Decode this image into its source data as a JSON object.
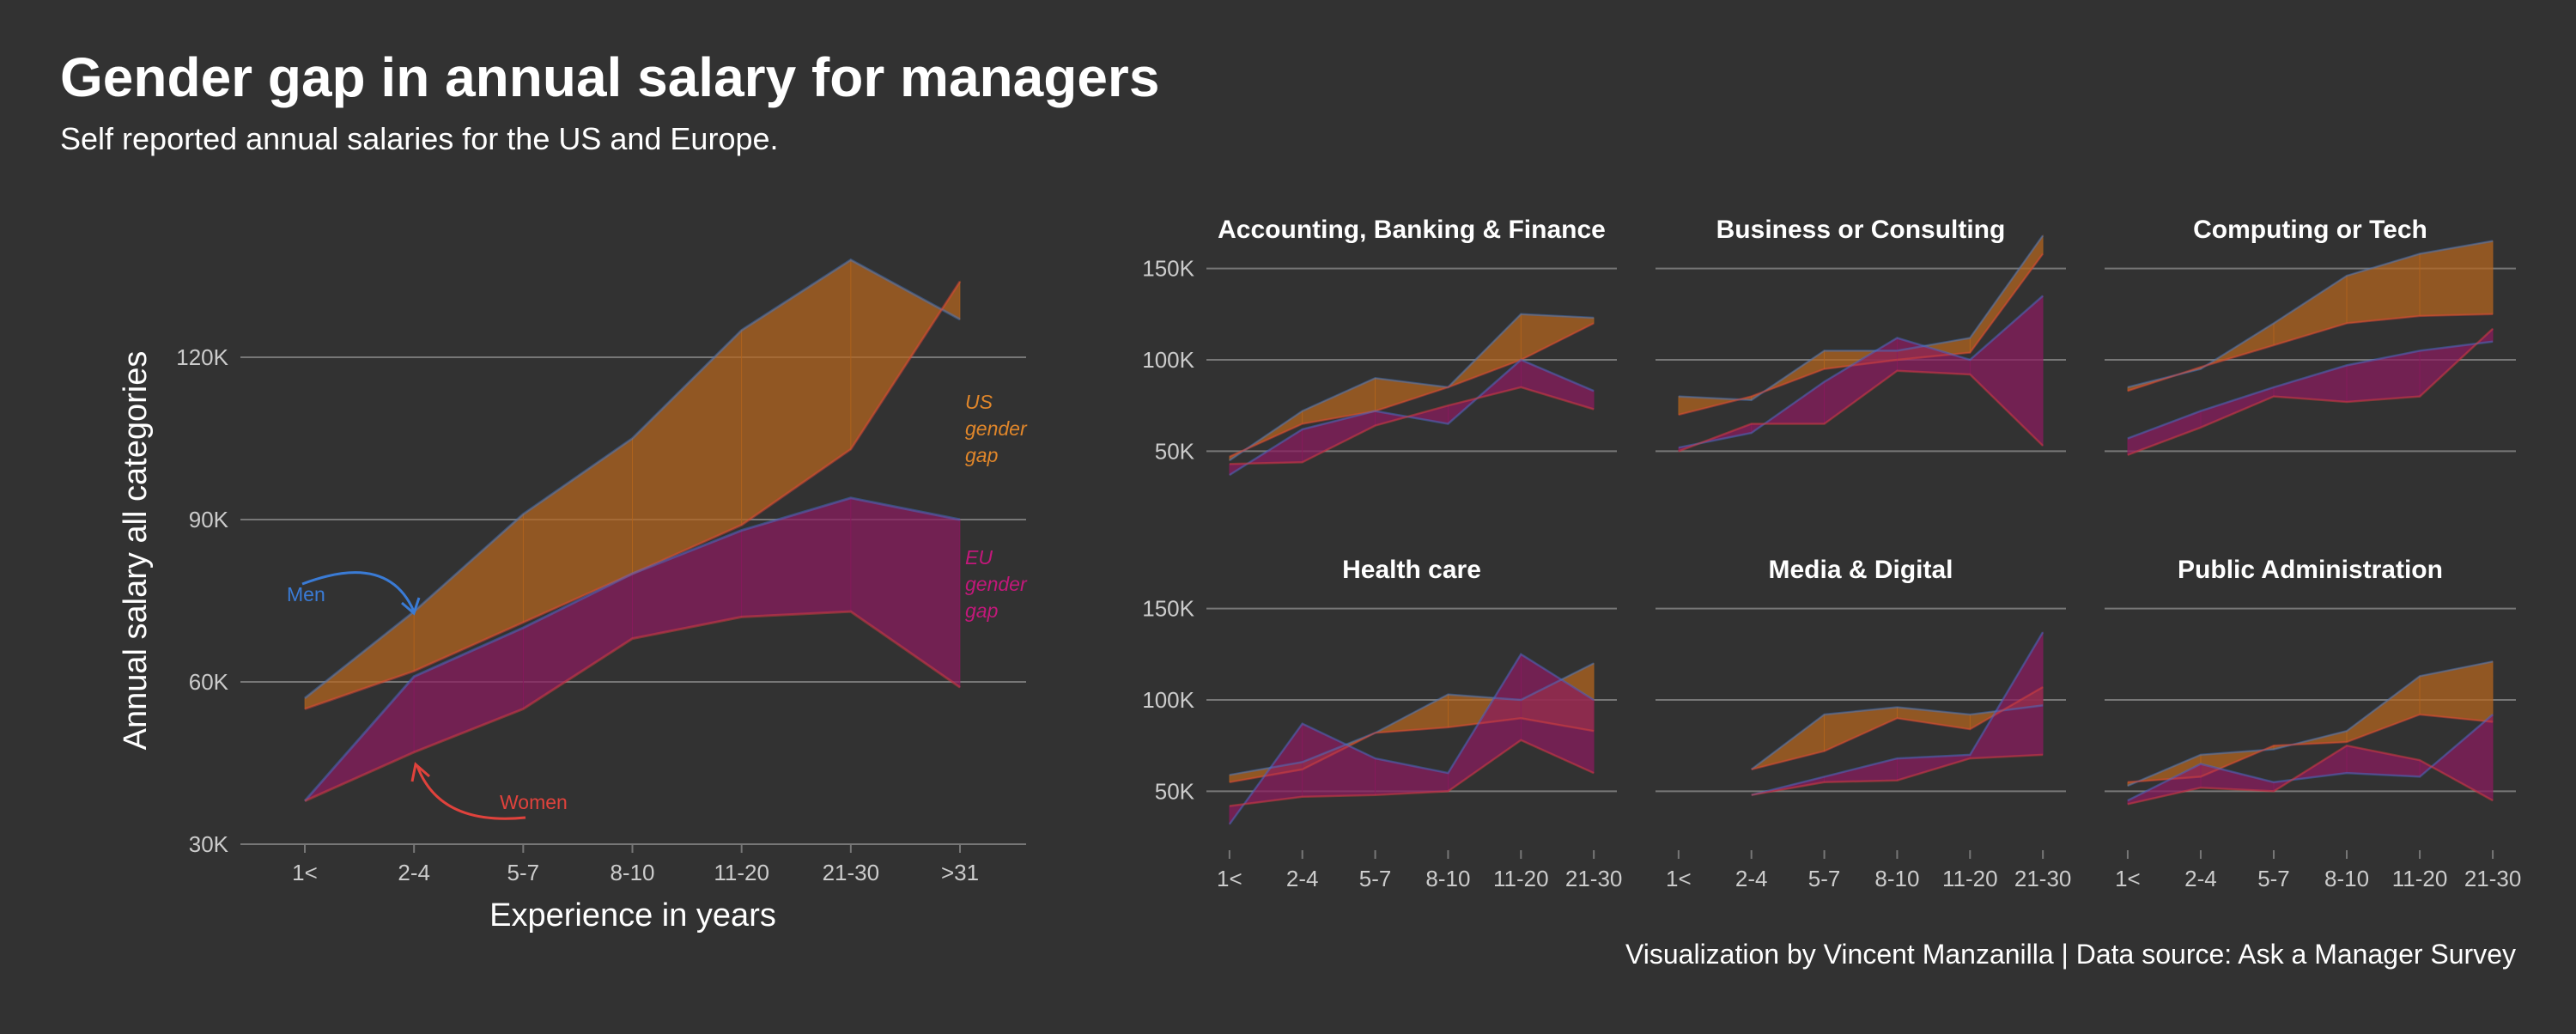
{
  "title": "Gender gap in annual salary for managers",
  "subtitle": "Self reported annual salaries for the US and Europe.",
  "caption": "Visualization by Vincent Manzanilla  |  Data source: Ask a Manager Survey",
  "colors": {
    "background": "#323232",
    "us_fill": "#b5651d",
    "eu_fill": "#8b1a5e",
    "men": "#3a7bd5",
    "women": "#e0423c",
    "us_label": "#e0862a",
    "eu_label": "#c2187a",
    "text": "#ffffff",
    "grid": "#777777",
    "tick": "#cccccc"
  },
  "annotations": {
    "men": "Men",
    "women": "Women",
    "us_gap": [
      "US",
      "gender",
      "gap"
    ],
    "eu_gap": [
      "EU",
      "gender",
      "gap"
    ]
  },
  "chart_data": [
    {
      "type": "area",
      "xlabel": "Experience in years",
      "ylabel": "Annual salary all categories",
      "categories": [
        "1<",
        "2-4",
        "5-7",
        "8-10",
        "11-20",
        "21-30",
        ">31"
      ],
      "ylim": [
        30000,
        140000
      ],
      "yticks": [
        30000,
        60000,
        90000,
        120000
      ],
      "ytick_labels": [
        "30K",
        "60K",
        "90K",
        "120K"
      ],
      "series": [
        {
          "region": "US",
          "gender": "men",
          "values": [
            57000,
            73000,
            91000,
            105000,
            125000,
            138000,
            127000
          ]
        },
        {
          "region": "US",
          "gender": "women",
          "values": [
            55000,
            62000,
            71000,
            80000,
            89000,
            103000,
            134000
          ]
        },
        {
          "region": "EU",
          "gender": "men",
          "values": [
            38000,
            61000,
            70000,
            80000,
            88000,
            94000,
            90000
          ]
        },
        {
          "region": "EU",
          "gender": "women",
          "values": [
            38000,
            47000,
            55000,
            68000,
            72000,
            73000,
            59000
          ]
        }
      ]
    },
    {
      "type": "area",
      "title": "Accounting, Banking & Finance",
      "categories": [
        "1<",
        "2-4",
        "5-7",
        "8-10",
        "11-20",
        "21-30"
      ],
      "ylim": [
        30000,
        170000
      ],
      "yticks": [
        50000,
        100000,
        150000
      ],
      "ytick_labels": [
        "50K",
        "100K",
        "150K"
      ],
      "series": [
        {
          "region": "US",
          "gender": "men",
          "values": [
            45000,
            72000,
            90000,
            85000,
            125000,
            123000
          ]
        },
        {
          "region": "US",
          "gender": "women",
          "values": [
            47000,
            65000,
            72000,
            85000,
            100000,
            120000
          ]
        },
        {
          "region": "EU",
          "gender": "men",
          "values": [
            37000,
            62000,
            72000,
            65000,
            100000,
            83000
          ]
        },
        {
          "region": "EU",
          "gender": "women",
          "values": [
            43000,
            44000,
            64000,
            75000,
            85000,
            73000
          ]
        }
      ]
    },
    {
      "type": "area",
      "title": "Business or Consulting",
      "categories": [
        "1<",
        "2-4",
        "5-7",
        "8-10",
        "11-20",
        "21-30"
      ],
      "ylim": [
        30000,
        170000
      ],
      "yticks": [
        50000,
        100000,
        150000
      ],
      "ytick_labels": [
        "50K",
        "100K",
        "150K"
      ],
      "series": [
        {
          "region": "US",
          "gender": "men",
          "values": [
            80000,
            78000,
            105000,
            105000,
            112000,
            168000
          ]
        },
        {
          "region": "US",
          "gender": "women",
          "values": [
            70000,
            80000,
            95000,
            100000,
            104000,
            158000
          ]
        },
        {
          "region": "EU",
          "gender": "men",
          "values": [
            52000,
            60000,
            88000,
            112000,
            100000,
            135000
          ]
        },
        {
          "region": "EU",
          "gender": "women",
          "values": [
            50000,
            65000,
            65000,
            94000,
            92000,
            53000
          ]
        }
      ]
    },
    {
      "type": "area",
      "title": "Computing or Tech",
      "categories": [
        "1<",
        "2-4",
        "5-7",
        "8-10",
        "11-20",
        "21-30"
      ],
      "ylim": [
        30000,
        170000
      ],
      "yticks": [
        50000,
        100000,
        150000
      ],
      "ytick_labels": [
        "50K",
        "100K",
        "150K"
      ],
      "series": [
        {
          "region": "US",
          "gender": "men",
          "values": [
            85000,
            95000,
            120000,
            146000,
            158000,
            165000
          ]
        },
        {
          "region": "US",
          "gender": "women",
          "values": [
            83000,
            96000,
            108000,
            120000,
            124000,
            125000
          ]
        },
        {
          "region": "EU",
          "gender": "men",
          "values": [
            57000,
            72000,
            85000,
            97000,
            105000,
            110000
          ]
        },
        {
          "region": "EU",
          "gender": "women",
          "values": [
            48000,
            63000,
            80000,
            77000,
            80000,
            117000
          ]
        }
      ]
    },
    {
      "type": "area",
      "title": "Health care",
      "categories": [
        "1<",
        "2-4",
        "5-7",
        "8-10",
        "11-20",
        "21-30"
      ],
      "ylim": [
        30000,
        170000
      ],
      "yticks": [
        50000,
        100000,
        150000
      ],
      "ytick_labels": [
        "50K",
        "100K",
        "150K"
      ],
      "series": [
        {
          "region": "US",
          "gender": "men",
          "values": [
            59000,
            66000,
            82000,
            103000,
            100000,
            120000
          ]
        },
        {
          "region": "US",
          "gender": "women",
          "values": [
            55000,
            62000,
            82000,
            85000,
            90000,
            83000
          ]
        },
        {
          "region": "EU",
          "gender": "men",
          "values": [
            32000,
            87000,
            68000,
            60000,
            125000,
            100000
          ]
        },
        {
          "region": "EU",
          "gender": "women",
          "values": [
            42000,
            47000,
            48000,
            50000,
            78000,
            60000
          ]
        }
      ]
    },
    {
      "type": "area",
      "title": "Media & Digital",
      "categories": [
        "1<",
        "2-4",
        "5-7",
        "8-10",
        "11-20",
        "21-30"
      ],
      "ylim": [
        30000,
        170000
      ],
      "yticks": [
        50000,
        100000,
        150000
      ],
      "ytick_labels": [
        "50K",
        "100K",
        "150K"
      ],
      "series": [
        {
          "region": "US",
          "gender": "men",
          "values": [
            null,
            62000,
            92000,
            96000,
            92000,
            97000
          ]
        },
        {
          "region": "US",
          "gender": "women",
          "values": [
            null,
            62000,
            72000,
            90000,
            84000,
            107000
          ]
        },
        {
          "region": "EU",
          "gender": "men",
          "values": [
            null,
            48000,
            58000,
            68000,
            70000,
            137000
          ]
        },
        {
          "region": "EU",
          "gender": "women",
          "values": [
            null,
            48000,
            55000,
            56000,
            68000,
            70000
          ]
        }
      ]
    },
    {
      "type": "area",
      "title": "Public Administration",
      "categories": [
        "1<",
        "2-4",
        "5-7",
        "8-10",
        "11-20",
        "21-30"
      ],
      "ylim": [
        30000,
        170000
      ],
      "yticks": [
        50000,
        100000,
        150000
      ],
      "ytick_labels": [
        "50K",
        "100K",
        "150K"
      ],
      "series": [
        {
          "region": "US",
          "gender": "men",
          "values": [
            53000,
            70000,
            73000,
            83000,
            113000,
            121000
          ]
        },
        {
          "region": "US",
          "gender": "women",
          "values": [
            55000,
            58000,
            75000,
            77000,
            92000,
            88000
          ]
        },
        {
          "region": "EU",
          "gender": "men",
          "values": [
            45000,
            65000,
            55000,
            60000,
            58000,
            92000
          ]
        },
        {
          "region": "EU",
          "gender": "women",
          "values": [
            43000,
            52000,
            50000,
            75000,
            67000,
            45000
          ]
        }
      ]
    }
  ]
}
